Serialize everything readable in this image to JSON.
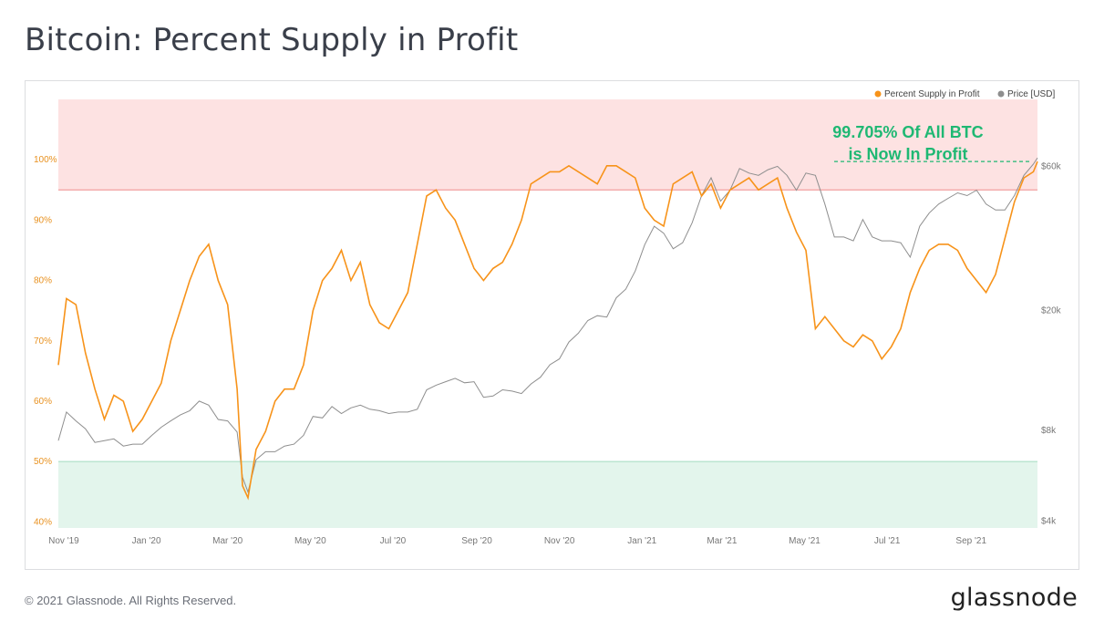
{
  "page": {
    "title": "Bitcoin: Percent Supply in Profit",
    "copyright": "© 2021 Glassnode. All Rights Reserved.",
    "logo": "glassnode"
  },
  "chart_data": {
    "type": "line",
    "title": "Bitcoin: Percent Supply in Profit",
    "colors": {
      "supply": "#f7931a",
      "price": "#8e8e8e",
      "upper_band": "#fde2e2",
      "upper_line": "#ef8a8a",
      "lower_band": "#e3f5ec",
      "lower_line": "#a3dcc0",
      "annotation": "#1fb873"
    },
    "legend": {
      "position": "top-right",
      "items": [
        {
          "name": "Percent Supply in Profit",
          "color": "#f7931a"
        },
        {
          "name": "Price [USD]",
          "color": "#8e8e8e"
        }
      ]
    },
    "annotation": {
      "line1": "99.705% Of All BTC",
      "line2": "is Now In Profit",
      "value": 99.705
    },
    "bands": {
      "upper_threshold": 95,
      "lower_threshold": 50
    },
    "x_ticks": [
      "Nov '19",
      "Jan '20",
      "Mar '20",
      "May '20",
      "Jul '20",
      "Sep '20",
      "Nov '20",
      "Jan '21",
      "Mar '21",
      "May '21",
      "Jul '21",
      "Sep '21"
    ],
    "y_left": {
      "ylim": [
        39,
        110
      ],
      "ticks": [
        40,
        50,
        60,
        70,
        80,
        90,
        100
      ],
      "labels": [
        "40%",
        "50%",
        "60%",
        "70%",
        "80%",
        "90%",
        "100%"
      ]
    },
    "y_right": {
      "scale": "log",
      "ylim": [
        3800,
        100000
      ],
      "ticks": [
        4000,
        8000,
        20000,
        60000
      ],
      "labels": [
        "$4k",
        "$8k",
        "$20k",
        "$60k"
      ]
    },
    "series": [
      {
        "name": "Percent Supply in Profit",
        "axis": "left",
        "x": [
          "2019-10-28",
          "2019-11-03",
          "2019-11-10",
          "2019-11-17",
          "2019-11-24",
          "2019-12-01",
          "2019-12-08",
          "2019-12-15",
          "2019-12-22",
          "2019-12-29",
          "2020-01-05",
          "2020-01-12",
          "2020-01-19",
          "2020-01-26",
          "2020-02-02",
          "2020-02-09",
          "2020-02-16",
          "2020-02-23",
          "2020-03-01",
          "2020-03-08",
          "2020-03-12",
          "2020-03-16",
          "2020-03-22",
          "2020-03-29",
          "2020-04-05",
          "2020-04-12",
          "2020-04-19",
          "2020-04-26",
          "2020-05-03",
          "2020-05-10",
          "2020-05-17",
          "2020-05-24",
          "2020-05-31",
          "2020-06-07",
          "2020-06-14",
          "2020-06-21",
          "2020-06-28",
          "2020-07-05",
          "2020-07-12",
          "2020-07-19",
          "2020-07-26",
          "2020-08-02",
          "2020-08-09",
          "2020-08-16",
          "2020-08-23",
          "2020-08-30",
          "2020-09-06",
          "2020-09-13",
          "2020-09-20",
          "2020-09-27",
          "2020-10-04",
          "2020-10-11",
          "2020-10-18",
          "2020-10-25",
          "2020-11-01",
          "2020-11-08",
          "2020-11-15",
          "2020-11-22",
          "2020-11-29",
          "2020-12-06",
          "2020-12-13",
          "2020-12-20",
          "2020-12-27",
          "2021-01-03",
          "2021-01-10",
          "2021-01-17",
          "2021-01-24",
          "2021-01-31",
          "2021-02-07",
          "2021-02-14",
          "2021-02-21",
          "2021-02-28",
          "2021-03-07",
          "2021-03-14",
          "2021-03-21",
          "2021-03-28",
          "2021-04-04",
          "2021-04-11",
          "2021-04-18",
          "2021-04-25",
          "2021-05-02",
          "2021-05-09",
          "2021-05-16",
          "2021-05-23",
          "2021-05-30",
          "2021-06-06",
          "2021-06-13",
          "2021-06-20",
          "2021-06-27",
          "2021-07-04",
          "2021-07-11",
          "2021-07-18",
          "2021-07-25",
          "2021-08-01",
          "2021-08-08",
          "2021-08-15",
          "2021-08-22",
          "2021-08-29",
          "2021-09-05",
          "2021-09-12",
          "2021-09-19",
          "2021-09-26",
          "2021-10-03",
          "2021-10-10",
          "2021-10-17",
          "2021-10-20"
        ],
        "values": [
          66,
          77,
          76,
          68,
          62,
          57,
          61,
          60,
          55,
          57,
          60,
          63,
          70,
          75,
          80,
          84,
          86,
          80,
          76,
          62,
          46,
          44,
          52,
          55,
          60,
          62,
          62,
          66,
          75,
          80,
          82,
          85,
          80,
          83,
          76,
          73,
          72,
          75,
          78,
          86,
          94,
          95,
          92,
          90,
          86,
          82,
          80,
          82,
          83,
          86,
          90,
          96,
          97,
          98,
          98,
          99,
          98,
          97,
          96,
          99,
          99,
          98,
          97,
          92,
          90,
          89,
          96,
          97,
          98,
          94,
          96,
          92,
          95,
          96,
          97,
          95,
          96,
          97,
          92,
          88,
          85,
          72,
          74,
          72,
          70,
          69,
          71,
          70,
          67,
          69,
          72,
          78,
          82,
          85,
          86,
          86,
          85,
          82,
          80,
          78,
          81,
          87,
          93,
          97,
          98,
          99.705
        ]
      },
      {
        "name": "Price [USD]",
        "axis": "right",
        "x": [
          "2019-10-28",
          "2019-11-03",
          "2019-11-10",
          "2019-11-17",
          "2019-11-24",
          "2019-12-01",
          "2019-12-08",
          "2019-12-15",
          "2019-12-22",
          "2019-12-29",
          "2020-01-05",
          "2020-01-12",
          "2020-01-19",
          "2020-01-26",
          "2020-02-02",
          "2020-02-09",
          "2020-02-16",
          "2020-02-23",
          "2020-03-01",
          "2020-03-08",
          "2020-03-12",
          "2020-03-16",
          "2020-03-22",
          "2020-03-29",
          "2020-04-05",
          "2020-04-12",
          "2020-04-19",
          "2020-04-26",
          "2020-05-03",
          "2020-05-10",
          "2020-05-17",
          "2020-05-24",
          "2020-05-31",
          "2020-06-07",
          "2020-06-14",
          "2020-06-21",
          "2020-06-28",
          "2020-07-05",
          "2020-07-12",
          "2020-07-19",
          "2020-07-26",
          "2020-08-02",
          "2020-08-09",
          "2020-08-16",
          "2020-08-23",
          "2020-08-30",
          "2020-09-06",
          "2020-09-13",
          "2020-09-20",
          "2020-09-27",
          "2020-10-04",
          "2020-10-11",
          "2020-10-18",
          "2020-10-25",
          "2020-11-01",
          "2020-11-08",
          "2020-11-15",
          "2020-11-22",
          "2020-11-29",
          "2020-12-06",
          "2020-12-13",
          "2020-12-20",
          "2020-12-27",
          "2021-01-03",
          "2021-01-10",
          "2021-01-17",
          "2021-01-24",
          "2021-01-31",
          "2021-02-07",
          "2021-02-14",
          "2021-02-21",
          "2021-02-28",
          "2021-03-07",
          "2021-03-14",
          "2021-03-21",
          "2021-03-28",
          "2021-04-04",
          "2021-04-11",
          "2021-04-18",
          "2021-04-25",
          "2021-05-02",
          "2021-05-09",
          "2021-05-16",
          "2021-05-23",
          "2021-05-30",
          "2021-06-06",
          "2021-06-13",
          "2021-06-20",
          "2021-06-27",
          "2021-07-04",
          "2021-07-11",
          "2021-07-18",
          "2021-07-25",
          "2021-08-01",
          "2021-08-08",
          "2021-08-15",
          "2021-08-22",
          "2021-08-29",
          "2021-09-05",
          "2021-09-12",
          "2021-09-19",
          "2021-09-26",
          "2021-10-03",
          "2021-10-10",
          "2021-10-17",
          "2021-10-20"
        ],
        "values": [
          7400,
          9200,
          8600,
          8100,
          7300,
          7400,
          7500,
          7100,
          7200,
          7200,
          7700,
          8200,
          8600,
          9000,
          9300,
          10000,
          9700,
          8700,
          8600,
          7900,
          5600,
          5000,
          6400,
          6800,
          6800,
          7100,
          7200,
          7700,
          8900,
          8800,
          9600,
          9100,
          9500,
          9700,
          9400,
          9300,
          9100,
          9200,
          9200,
          9400,
          10900,
          11300,
          11600,
          11900,
          11500,
          11600,
          10300,
          10400,
          10900,
          10800,
          10600,
          11400,
          12000,
          13200,
          13800,
          15700,
          16800,
          18500,
          19200,
          19000,
          22000,
          23500,
          27000,
          33000,
          38000,
          36000,
          32000,
          33500,
          39000,
          48000,
          55000,
          46000,
          50000,
          59000,
          57000,
          56000,
          58500,
          60000,
          56000,
          50000,
          57000,
          56000,
          45000,
          35000,
          35000,
          34000,
          40000,
          35000,
          34000,
          34000,
          33500,
          30000,
          38000,
          42000,
          45000,
          47000,
          49000,
          48000,
          50000,
          45000,
          43000,
          43000,
          48000,
          56000,
          61000,
          64000
        ]
      }
    ]
  }
}
